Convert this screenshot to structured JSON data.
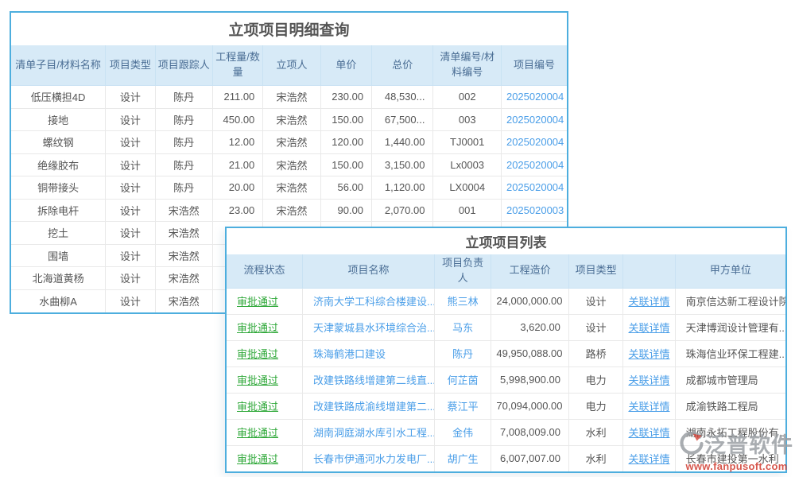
{
  "detail_table": {
    "title": "立项项目明细查询",
    "columns": [
      "清单子目/材料名称",
      "项目类型",
      "项目跟踪人",
      "工程量/数量",
      "立项人",
      "单价",
      "总价",
      "清单编号/材料编号",
      "项目编号"
    ],
    "rows": [
      [
        "低压横担4D",
        "设计",
        "陈丹",
        "211.00",
        "宋浩然",
        "230.00",
        "48,530...",
        "002",
        "2025020004"
      ],
      [
        "接地",
        "设计",
        "陈丹",
        "450.00",
        "宋浩然",
        "150.00",
        "67,500...",
        "003",
        "2025020004"
      ],
      [
        "螺纹钢",
        "设计",
        "陈丹",
        "12.00",
        "宋浩然",
        "120.00",
        "1,440.00",
        "TJ0001",
        "2025020004"
      ],
      [
        "绝缘胶布",
        "设计",
        "陈丹",
        "21.00",
        "宋浩然",
        "150.00",
        "3,150.00",
        "Lx0003",
        "2025020004"
      ],
      [
        "铜带接头",
        "设计",
        "陈丹",
        "20.00",
        "宋浩然",
        "56.00",
        "1,120.00",
        "LX0004",
        "2025020004"
      ],
      [
        "拆除电杆",
        "设计",
        "宋浩然",
        "23.00",
        "宋浩然",
        "90.00",
        "2,070.00",
        "001",
        "2025020003"
      ],
      [
        "挖土",
        "设计",
        "宋浩然",
        "",
        "",
        "",
        "",
        "",
        ""
      ],
      [
        "围墙",
        "设计",
        "宋浩然",
        "",
        "",
        "",
        "",
        "",
        ""
      ],
      [
        "北海道黄杨",
        "设计",
        "宋浩然",
        "",
        "",
        "",
        "",
        "",
        ""
      ],
      [
        "水曲柳A",
        "设计",
        "宋浩然",
        "",
        "",
        "",
        "",
        "",
        ""
      ]
    ]
  },
  "list_table": {
    "title": "立项项目列表",
    "columns": [
      "流程状态",
      "项目名称",
      "项目负责人",
      "工程造价",
      "项目类型",
      "",
      "甲方单位"
    ],
    "rows": [
      [
        "审批通过",
        "济南大学工科综合楼建设...",
        "熊三林",
        "24,000,000.00",
        "设计",
        "关联详情",
        "南京信达新工程设计院"
      ],
      [
        "审批通过",
        "天津蒙城县水环境综合治...",
        "马东",
        "3,620.00",
        "设计",
        "关联详情",
        "天津博润设计管理有..."
      ],
      [
        "审批通过",
        "珠海鹤港口建设",
        "陈丹",
        "49,950,088.00",
        "路桥",
        "关联详情",
        "珠海信业环保工程建..."
      ],
      [
        "审批通过",
        "改建铁路线增建第二线直...",
        "何芷茵",
        "5,998,900.00",
        "电力",
        "关联详情",
        "成都城市管理局"
      ],
      [
        "审批通过",
        "改建铁路成渝线增建第二...",
        "蔡江平",
        "70,094,000.00",
        "电力",
        "关联详情",
        "成渝铁路工程局"
      ],
      [
        "审批通过",
        "湖南洞庭湖水库引水工程...",
        "金伟",
        "7,008,009.00",
        "水利",
        "关联详情",
        "湖南永拓工程股份有..."
      ],
      [
        "审批通过",
        "长春市伊通河水力发电厂...",
        "胡广生",
        "6,007,007.00",
        "水利",
        "关联详情",
        "长春市建投第一水利"
      ]
    ]
  },
  "watermark": {
    "brand": "泛普软件",
    "url": "www.fanpusoft.com"
  },
  "colors": {
    "accent_border": "#4daede",
    "header_bg": "#d7eaf7",
    "header_text": "#4a6d94",
    "body_text": "#555555",
    "link_blue": "#4a9ee8",
    "status_green": "#2fa839",
    "watermark_red": "#d03a2e",
    "grid_line": "#e9e9e9"
  }
}
